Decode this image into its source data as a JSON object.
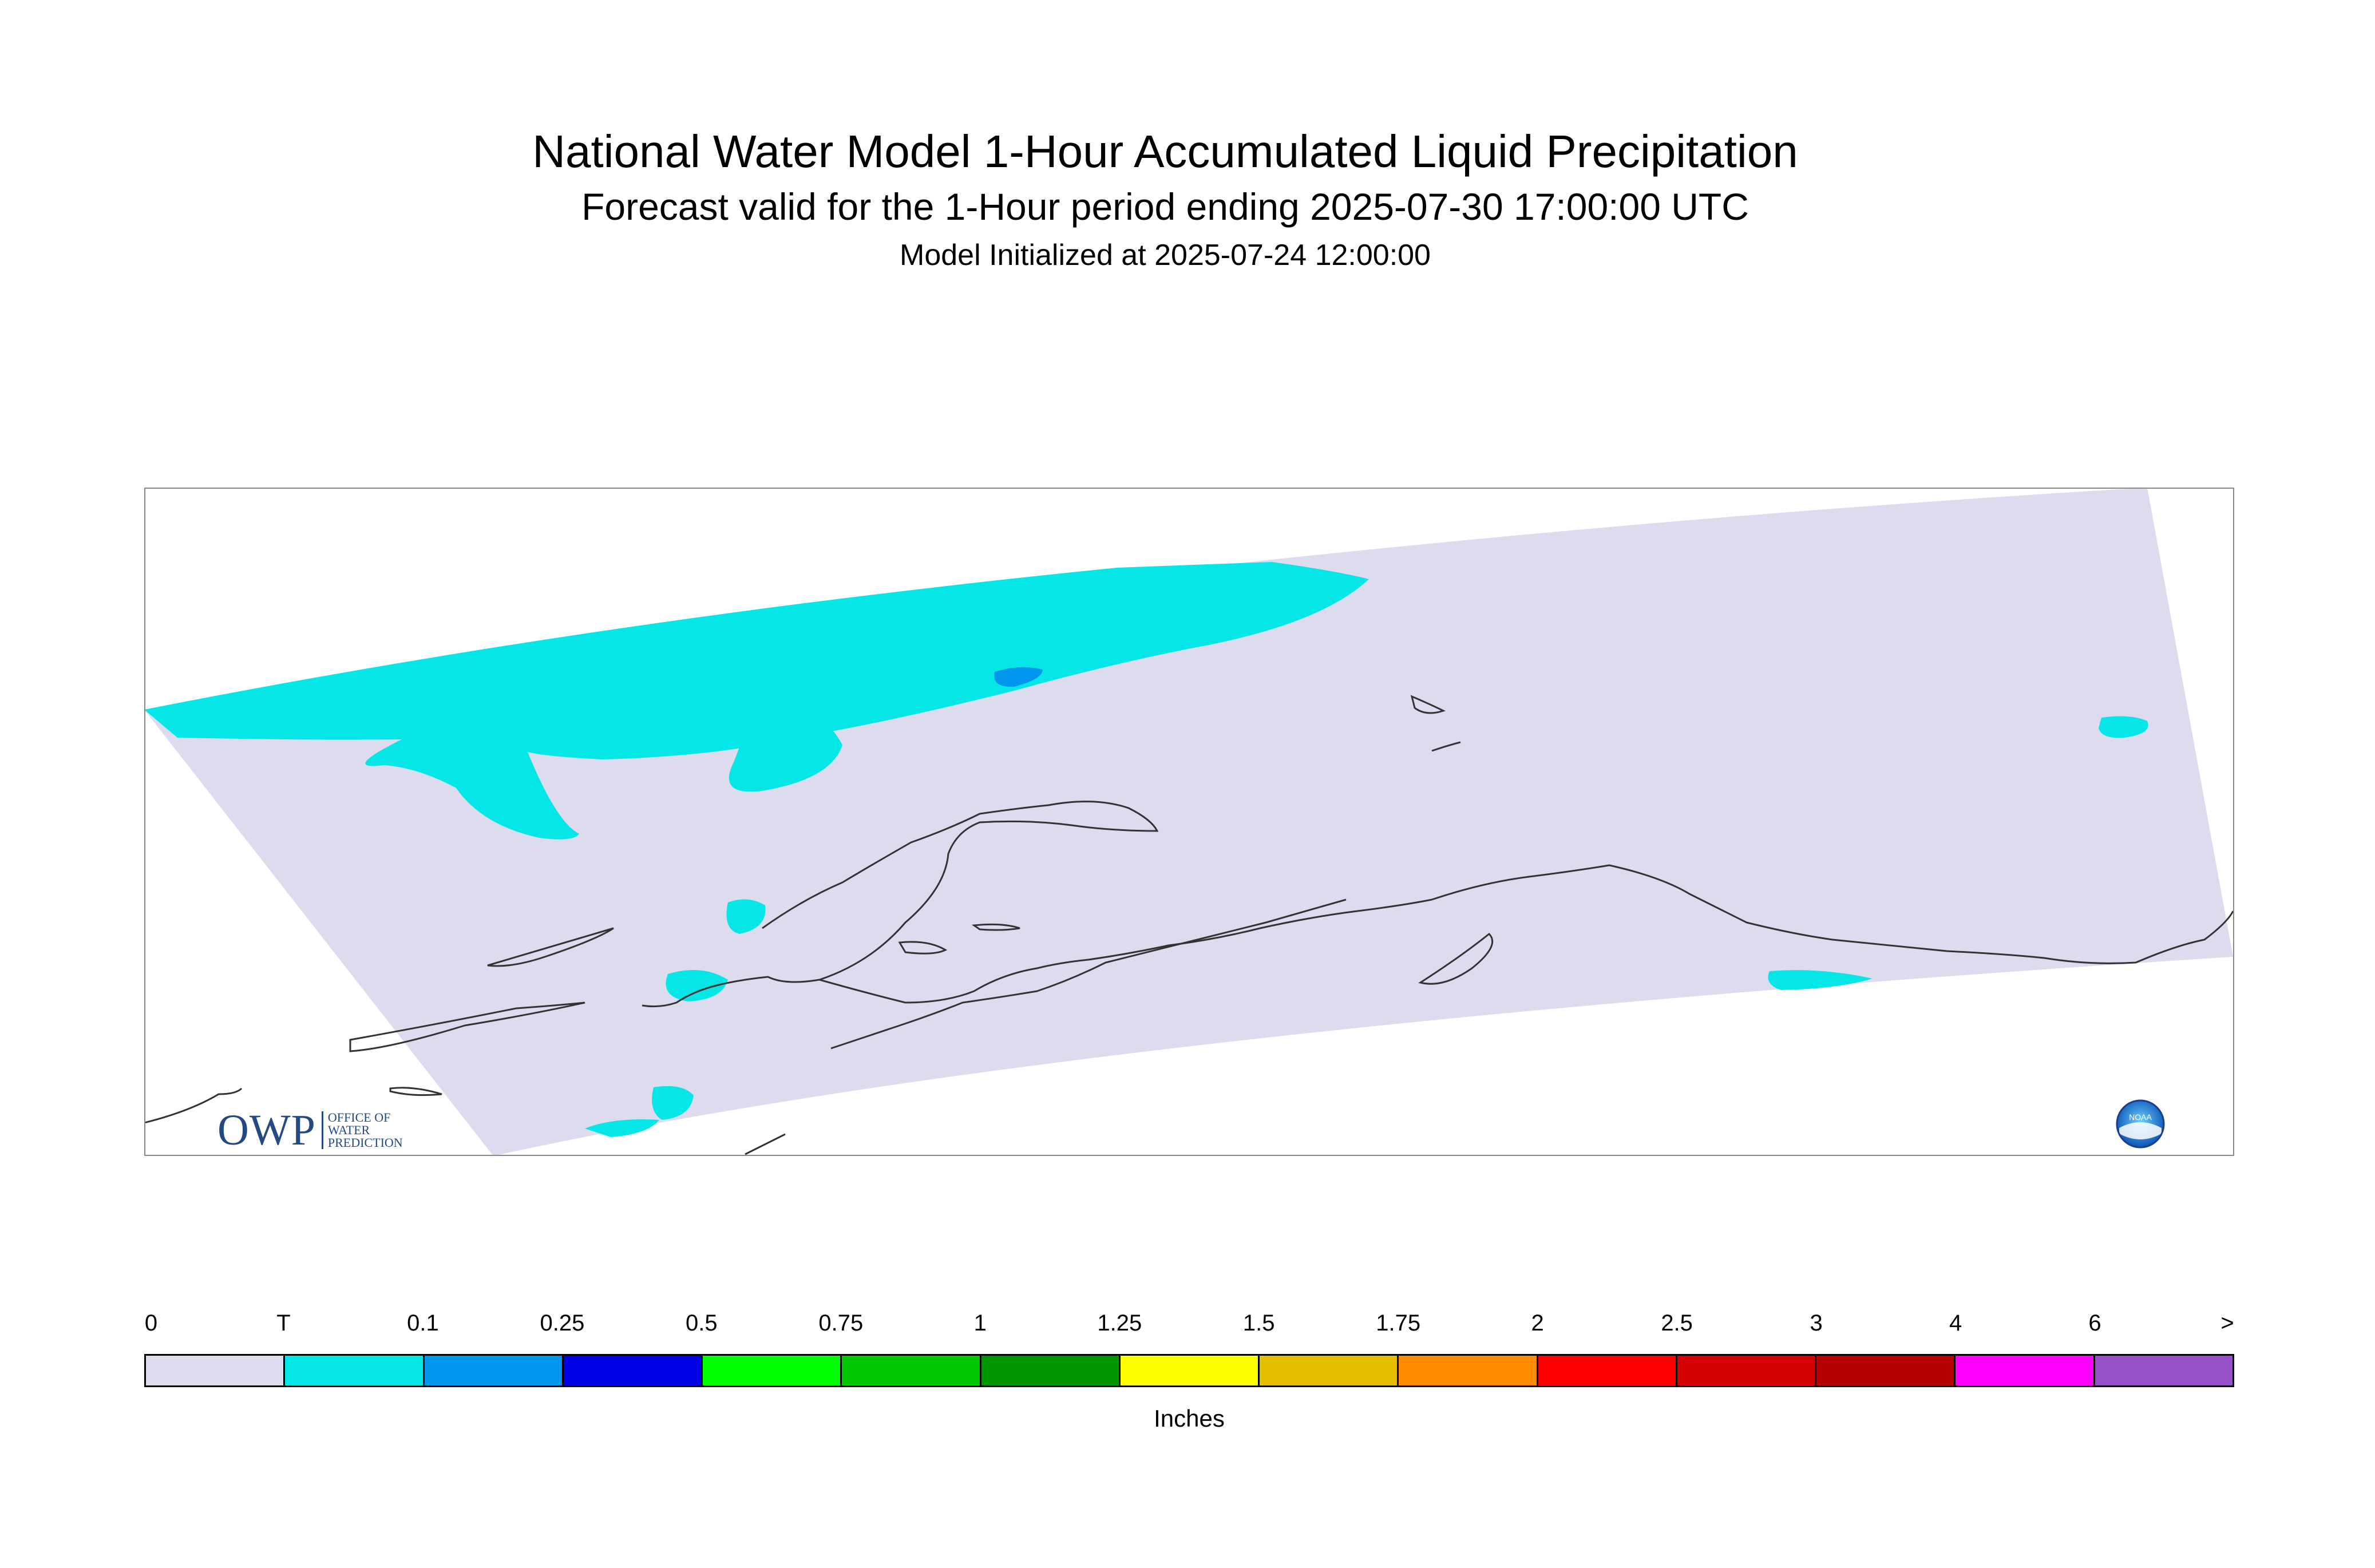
{
  "title": "National Water Model 1-Hour Accumulated Liquid Precipitation",
  "subtitle": "Forecast valid for the 1-Hour period ending 2025-07-30 17:00:00 UTC",
  "init_line": "Model Initialized at 2025-07-24 12:00:00",
  "logos": {
    "owp_letters": "OWP",
    "owp_sub": [
      "OFFICE OF",
      "WATER",
      "PREDICTION"
    ],
    "noaa_text": "NOAA"
  },
  "legend": {
    "units": "Inches",
    "tick_labels": [
      "0",
      "T",
      "0.1",
      "0.25",
      "0.5",
      "0.75",
      "1",
      "1.25",
      "1.5",
      "1.75",
      "2",
      "2.5",
      "3",
      "4",
      "6",
      ">"
    ],
    "colors": [
      "#dcdcee",
      "#05e6e6",
      "#0096ee",
      "#0000e6",
      "#00ff00",
      "#00c800",
      "#009600",
      "#ffff00",
      "#e6be00",
      "#ff8c00",
      "#ff0000",
      "#d20000",
      "#b40000",
      "#ff00ff",
      "#9650c8"
    ]
  },
  "map_colors": {
    "domain": "#dcdcee",
    "trace": "#05e6e6",
    "light": "#0096ee",
    "coast": "#333333",
    "frame": "#888888"
  }
}
